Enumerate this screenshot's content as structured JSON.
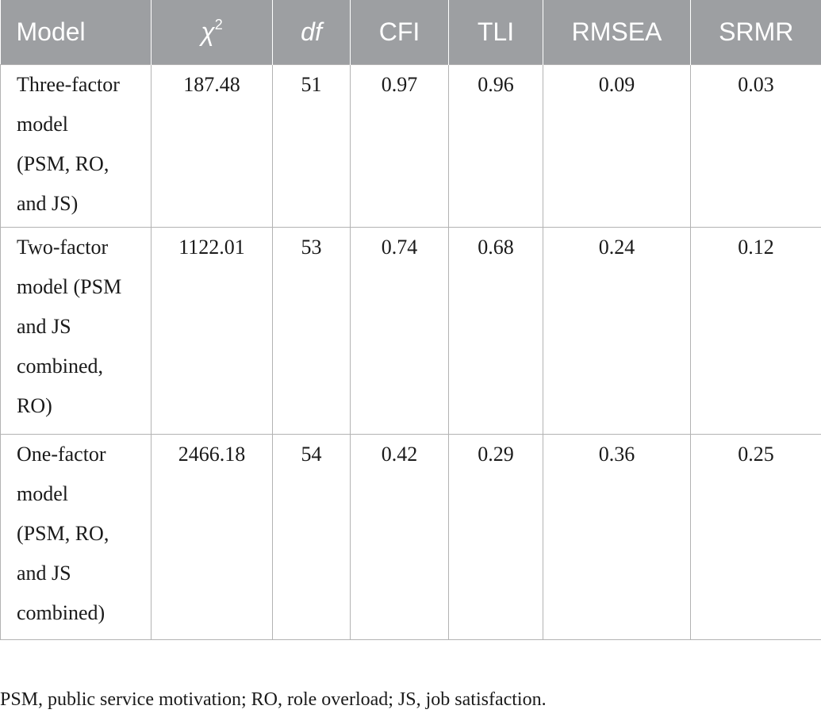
{
  "table": {
    "headers": {
      "model": "Model",
      "chi_symbol": "χ",
      "chi_sup": "2",
      "df": "df",
      "cfi": "CFI",
      "tli": "TLI",
      "rmsea": "RMSEA",
      "srmr": "SRMR"
    },
    "rows": [
      {
        "model_lines": [
          "Three-factor",
          "model",
          "(PSM, RO,",
          "and JS)"
        ],
        "chi2": "187.48",
        "df": "51",
        "cfi": "0.97",
        "tli": "0.96",
        "rmsea": "0.09",
        "srmr": "0.03"
      },
      {
        "model_lines": [
          "Two-factor",
          "model (PSM",
          "and JS",
          "combined,",
          "RO)"
        ],
        "chi2": "1122.01",
        "df": "53",
        "cfi": "0.74",
        "tli": "0.68",
        "rmsea": "0.24",
        "srmr": "0.12"
      },
      {
        "model_lines": [
          "One-factor",
          "model",
          "(PSM, RO,",
          "and JS",
          "combined)"
        ],
        "chi2": "2466.18",
        "df": "54",
        "cfi": "0.42",
        "tli": "0.29",
        "rmsea": "0.36",
        "srmr": "0.25"
      }
    ]
  },
  "footnote": "PSM, public service motivation; RO, role overload; JS, job satisfaction.",
  "colors": {
    "header_background": "#9d9fa2",
    "header_text": "#ffffff",
    "grid_lines": "#b3b3b3",
    "body_text": "#1a1a1a"
  }
}
